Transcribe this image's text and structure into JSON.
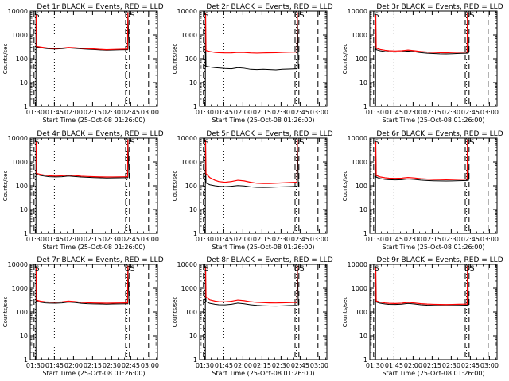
{
  "page": {
    "width": 640,
    "height": 480
  },
  "style": {
    "events_color": "#000000",
    "lld_color": "#ff0000",
    "background": "#ffffff"
  },
  "common": {
    "xlabel": "Start Time (25-Oct-08 01:26:00)",
    "ylabel": "Counts/sec",
    "x_ticks": [
      "01:30",
      "01:45",
      "02:00",
      "02:15",
      "02:30",
      "02:45",
      "03:00"
    ],
    "x_tick_minutes": [
      4,
      19,
      34,
      49,
      64,
      79,
      94
    ],
    "x_range_minutes": [
      0,
      100
    ],
    "y_ticks": [
      "1",
      "10",
      "100",
      "1000",
      "10000"
    ],
    "y_tick_values": [
      1,
      10,
      100,
      1000,
      10000
    ],
    "y_scale": "log",
    "ylim": [
      1,
      10000
    ],
    "markers": {
      "left_label": "S",
      "right_label": "DS"
    }
  },
  "chart_data": [
    {
      "title": "Det 1r BLACK = Events, RED = LLD",
      "type": "line",
      "x_minutes": [
        5,
        8,
        12,
        15,
        20,
        25,
        30,
        35,
        40,
        45,
        50,
        55,
        60,
        65,
        70,
        76
      ],
      "series": [
        {
          "name": "Events",
          "values": [
            310,
            290,
            270,
            260,
            255,
            265,
            285,
            275,
            260,
            250,
            245,
            235,
            228,
            232,
            236,
            240
          ]
        },
        {
          "name": "LLD",
          "values": [
            330,
            310,
            290,
            275,
            270,
            280,
            300,
            290,
            275,
            265,
            258,
            248,
            240,
            245,
            250,
            255
          ]
        }
      ],
      "start_spike": 7000,
      "end_spike": 9000,
      "dash_lines_minutes": [
        3,
        75,
        78,
        93
      ],
      "dot_lines_minutes": [
        4,
        19,
        76
      ]
    },
    {
      "title": "Det 2r BLACK = Events, RED = LLD",
      "type": "line",
      "x_minutes": [
        5,
        8,
        12,
        15,
        20,
        25,
        30,
        35,
        40,
        45,
        50,
        55,
        60,
        65,
        70,
        76
      ],
      "series": [
        {
          "name": "Events",
          "values": [
            48,
            45,
            42,
            41,
            39,
            38,
            42,
            40,
            36,
            35,
            36,
            35,
            34,
            36,
            37,
            38
          ]
        },
        {
          "name": "LLD",
          "values": [
            220,
            200,
            185,
            180,
            175,
            176,
            185,
            182,
            175,
            172,
            175,
            178,
            180,
            184,
            188,
            190
          ]
        }
      ],
      "start_spike": 8000,
      "end_spike": 9000,
      "dash_lines_minutes": [
        3,
        75,
        78,
        93
      ],
      "dot_lines_minutes": [
        4,
        19,
        76
      ]
    },
    {
      "title": "Det 3r BLACK = Events, RED = LLD",
      "type": "line",
      "x_minutes": [
        5,
        8,
        12,
        15,
        20,
        25,
        30,
        35,
        40,
        45,
        50,
        55,
        60,
        65,
        70,
        76
      ],
      "series": [
        {
          "name": "Events",
          "values": [
            240,
            215,
            200,
            195,
            190,
            195,
            210,
            195,
            180,
            170,
            165,
            160,
            158,
            162,
            166,
            170
          ]
        },
        {
          "name": "LLD",
          "values": [
            280,
            245,
            225,
            215,
            210,
            215,
            230,
            215,
            200,
            190,
            185,
            180,
            178,
            182,
            186,
            190
          ]
        }
      ],
      "start_spike": 7000,
      "end_spike": 9000,
      "dash_lines_minutes": [
        3,
        75,
        78,
        93
      ],
      "dot_lines_minutes": [
        4,
        19,
        76
      ]
    },
    {
      "title": "Det 4r BLACK = Events, RED = LLD",
      "type": "line",
      "x_minutes": [
        5,
        8,
        12,
        15,
        20,
        25,
        30,
        35,
        40,
        45,
        50,
        55,
        60,
        65,
        70,
        76
      ],
      "series": [
        {
          "name": "Events",
          "values": [
            300,
            270,
            250,
            240,
            235,
            240,
            255,
            245,
            232,
            225,
            220,
            215,
            212,
            214,
            216,
            218
          ]
        },
        {
          "name": "LLD",
          "values": [
            330,
            300,
            275,
            262,
            255,
            262,
            278,
            268,
            252,
            245,
            240,
            235,
            232,
            234,
            236,
            238
          ]
        }
      ],
      "start_spike": 7000,
      "end_spike": 9000,
      "dash_lines_minutes": [
        3,
        75,
        78,
        93
      ],
      "dot_lines_minutes": [
        4,
        19,
        76
      ]
    },
    {
      "title": "Det 5r BLACK = Events, RED = LLD",
      "type": "line",
      "x_minutes": [
        5,
        8,
        12,
        15,
        20,
        25,
        30,
        35,
        40,
        45,
        50,
        55,
        60,
        65,
        70,
        76
      ],
      "series": [
        {
          "name": "Events",
          "values": [
            130,
            110,
            100,
            95,
            92,
            95,
            102,
            98,
            90,
            86,
            85,
            86,
            88,
            90,
            92,
            94
          ]
        },
        {
          "name": "LLD",
          "values": [
            320,
            220,
            170,
            150,
            140,
            150,
            170,
            160,
            140,
            128,
            124,
            125,
            128,
            132,
            136,
            140
          ]
        }
      ],
      "start_spike": 8000,
      "end_spike": 9000,
      "dash_lines_minutes": [
        3,
        75,
        78,
        93
      ],
      "dot_lines_minutes": [
        4,
        19,
        76
      ]
    },
    {
      "title": "Det 6r BLACK = Events, RED = LLD",
      "type": "line",
      "x_minutes": [
        5,
        8,
        12,
        15,
        20,
        25,
        30,
        35,
        40,
        45,
        50,
        55,
        60,
        65,
        70,
        76
      ],
      "series": [
        {
          "name": "Events",
          "values": [
            230,
            200,
            185,
            180,
            176,
            180,
            192,
            184,
            172,
            166,
            162,
            160,
            158,
            160,
            163,
            166
          ]
        },
        {
          "name": "LLD",
          "values": [
            270,
            235,
            215,
            208,
            203,
            208,
            222,
            212,
            198,
            190,
            185,
            182,
            180,
            183,
            186,
            189
          ]
        }
      ],
      "start_spike": 7000,
      "end_spike": 9000,
      "dash_lines_minutes": [
        3,
        75,
        78,
        93
      ],
      "dot_lines_minutes": [
        4,
        19,
        76
      ]
    },
    {
      "title": "Det 7r BLACK = Events, RED = LLD",
      "type": "line",
      "x_minutes": [
        5,
        8,
        12,
        15,
        20,
        25,
        30,
        35,
        40,
        45,
        50,
        55,
        60,
        65,
        70,
        76
      ],
      "series": [
        {
          "name": "Events",
          "values": [
            280,
            255,
            240,
            235,
            232,
            240,
            258,
            248,
            230,
            222,
            218,
            215,
            212,
            215,
            218,
            220
          ]
        },
        {
          "name": "LLD",
          "values": [
            310,
            282,
            265,
            258,
            255,
            265,
            285,
            272,
            252,
            243,
            238,
            235,
            232,
            235,
            238,
            240
          ]
        }
      ],
      "start_spike": 7000,
      "end_spike": 9000,
      "dash_lines_minutes": [
        3,
        75,
        78,
        93
      ],
      "dot_lines_minutes": [
        4,
        19,
        76
      ]
    },
    {
      "title": "Det 8r BLACK = Events, RED = LLD",
      "type": "line",
      "x_minutes": [
        5,
        8,
        12,
        15,
        20,
        25,
        30,
        35,
        40,
        45,
        50,
        55,
        60,
        65,
        70,
        76
      ],
      "series": [
        {
          "name": "Events",
          "values": [
            270,
            230,
            210,
            200,
            198,
            210,
            235,
            220,
            200,
            188,
            182,
            178,
            176,
            180,
            184,
            188
          ]
        },
        {
          "name": "LLD",
          "values": [
            420,
            320,
            285,
            270,
            265,
            280,
            315,
            295,
            268,
            252,
            245,
            240,
            238,
            242,
            246,
            250
          ]
        }
      ],
      "start_spike": 8000,
      "end_spike": 9000,
      "dash_lines_minutes": [
        3,
        75,
        78,
        93
      ],
      "dot_lines_minutes": [
        4,
        19,
        76
      ]
    },
    {
      "title": "Det 9r BLACK = Events, RED = LLD",
      "type": "line",
      "x_minutes": [
        5,
        8,
        12,
        15,
        20,
        25,
        30,
        35,
        40,
        45,
        50,
        55,
        60,
        65,
        70,
        76
      ],
      "series": [
        {
          "name": "Events",
          "values": [
            260,
            232,
            215,
            208,
            205,
            212,
            228,
            216,
            200,
            192,
            188,
            185,
            183,
            186,
            189,
            192
          ]
        },
        {
          "name": "LLD",
          "values": [
            290,
            258,
            238,
            230,
            226,
            234,
            250,
            238,
            222,
            213,
            208,
            205,
            203,
            206,
            209,
            212
          ]
        }
      ],
      "start_spike": 7000,
      "end_spike": 9000,
      "dash_lines_minutes": [
        3,
        75,
        78,
        93
      ],
      "dot_lines_minutes": [
        4,
        19,
        76
      ]
    }
  ]
}
